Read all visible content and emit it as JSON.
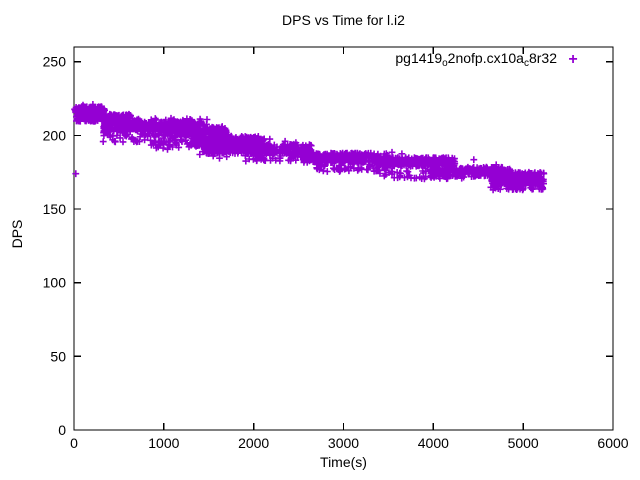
{
  "title": "DPS vs Time for l.i2",
  "axes": {
    "xlabel": "Time(s)",
    "ylabel": "DPS",
    "x_ticks": [
      0,
      1000,
      2000,
      3000,
      4000,
      5000,
      6000
    ],
    "y_ticks": [
      0,
      50,
      100,
      150,
      200,
      250
    ],
    "x_range": [
      0,
      6000
    ],
    "y_range": [
      0,
      260
    ],
    "grid": "off"
  },
  "legend": {
    "position": "top-right-inside",
    "marker_glyph": "+",
    "marker_color": "#9400d3",
    "label_segments": [
      {
        "t": "pg1419",
        "sub": false
      },
      {
        "t": "o",
        "sub": true
      },
      {
        "t": "2nofp.cx10a",
        "sub": false
      },
      {
        "t": "c",
        "sub": true
      },
      {
        "t": "8r32",
        "sub": false
      }
    ]
  },
  "colors": {
    "series": "#9400d3",
    "frame": "#000000",
    "background": "#ffffff"
  },
  "chart_data": {
    "type": "scatter",
    "title": "DPS vs Time for l.i2",
    "xlabel": "Time(s)",
    "ylabel": "DPS",
    "xlim": [
      0,
      6000
    ],
    "ylim": [
      0,
      260
    ],
    "x_ticks": [
      0,
      1000,
      2000,
      3000,
      4000,
      5000,
      6000
    ],
    "y_ticks": [
      0,
      50,
      100,
      150,
      200,
      250
    ],
    "legend_position": "top-right-inside",
    "grid": "off",
    "series": [
      {
        "name": "pg1419o2nofp.cx10ac8r32",
        "color": "#9400d3",
        "marker": "plus",
        "trend_points": [
          [
            0,
            218
          ],
          [
            250,
            215
          ],
          [
            500,
            212
          ],
          [
            750,
            207
          ],
          [
            1000,
            206
          ],
          [
            1250,
            203
          ],
          [
            1500,
            198
          ],
          [
            1750,
            194
          ],
          [
            2000,
            193
          ],
          [
            2250,
            191
          ],
          [
            2500,
            189
          ],
          [
            2750,
            186
          ],
          [
            3000,
            185
          ],
          [
            3250,
            184
          ],
          [
            3500,
            183
          ],
          [
            3750,
            182
          ],
          [
            4000,
            180
          ],
          [
            4250,
            177
          ],
          [
            4500,
            175
          ],
          [
            4750,
            173
          ],
          [
            5000,
            172
          ],
          [
            5200,
            171
          ]
        ],
        "bands": [
          {
            "t": [
              0,
              345
            ],
            "dps": [
              215.5,
              219.5
            ],
            "n": 160
          },
          {
            "t": [
              25,
              630
            ],
            "dps": [
              209.5,
              214.3
            ],
            "n": 250
          },
          {
            "t": [
              330,
              1440
            ],
            "dps": [
              202.5,
              209.5
            ],
            "n": 380
          },
          {
            "t": [
              1180,
              1700
            ],
            "dps": [
              200,
              205.5
            ],
            "n": 160
          },
          {
            "t": [
              1290,
              2120
            ],
            "dps": [
              192.5,
              199.5
            ],
            "n": 300
          },
          {
            "t": [
              1430,
              2640
            ],
            "dps": [
              187.5,
              194
            ],
            "n": 330
          },
          {
            "t": [
              2550,
              3490
            ],
            "dps": [
              181.5,
              188
            ],
            "n": 310
          },
          {
            "t": [
              3380,
              4240
            ],
            "dps": [
              179,
              185
            ],
            "n": 280
          },
          {
            "t": [
              3960,
              4860
            ],
            "dps": [
              172,
              178.5
            ],
            "n": 280
          },
          {
            "t": [
              4640,
              5230
            ],
            "dps": [
              167,
              175
            ],
            "n": 240
          }
        ],
        "scatter_bands": [
          {
            "t": [
              300,
              1450
            ],
            "dps": [
              195.5,
              202
            ],
            "n": 80
          },
          {
            "t": [
              850,
              2150
            ],
            "dps": [
              190.5,
              196.5
            ],
            "n": 65
          },
          {
            "t": [
              1900,
              2700
            ],
            "dps": [
              182.5,
              188.5
            ],
            "n": 50
          },
          {
            "t": [
              2700,
              3490
            ],
            "dps": [
              175.5,
              181
            ],
            "n": 55
          },
          {
            "t": [
              3400,
              4350
            ],
            "dps": [
              170.5,
              176
            ],
            "n": 50
          },
          {
            "t": [
              4640,
              5230
            ],
            "dps": [
              163,
              167.5
            ],
            "n": 60
          },
          {
            "t": [
              650,
              1500
            ],
            "dps": [
              207.5,
              212.5
            ],
            "n": 40
          }
        ],
        "outliers": [
          [
            20,
            174
          ],
          [
            100,
            220.5
          ],
          [
            210,
            221
          ],
          [
            330,
            216
          ],
          [
            420,
            213.5
          ],
          [
            700,
            210.5
          ],
          [
            1314,
            210
          ],
          [
            1400,
            187
          ],
          [
            1550,
            186
          ],
          [
            1620,
            184.5
          ],
          [
            1700,
            185.5
          ],
          [
            1537,
            205.5
          ],
          [
            1650,
            206
          ],
          [
            2180,
            197.5
          ],
          [
            2350,
            196
          ],
          [
            2470,
            195
          ],
          [
            2640,
            193
          ],
          [
            1950,
            184
          ],
          [
            2300,
            186
          ],
          [
            2900,
            177.5
          ],
          [
            3060,
            176
          ],
          [
            3540,
            188.5
          ],
          [
            3650,
            187.5
          ],
          [
            3900,
            170.5
          ],
          [
            4210,
            184.5
          ],
          [
            4450,
            183.5
          ],
          [
            4700,
            180
          ],
          [
            4980,
            164.5
          ],
          [
            5100,
            163.5
          ],
          [
            5190,
            165
          ],
          [
            1200,
            196.5
          ],
          [
            820,
            199.5
          ],
          [
            560,
            202.5
          ],
          [
            5230,
            174
          ]
        ]
      }
    ]
  }
}
